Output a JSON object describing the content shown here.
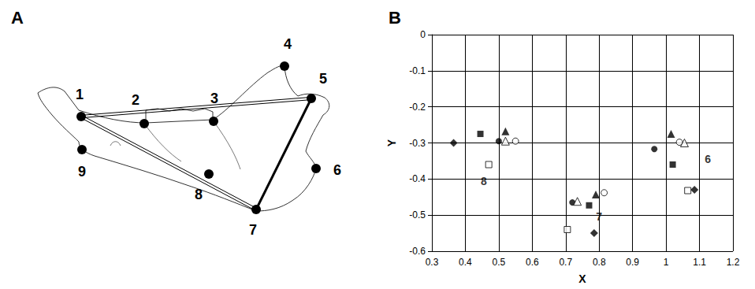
{
  "figure": {
    "panel_a": {
      "letter": "A",
      "landmarks": [
        "1",
        "2",
        "3",
        "4",
        "5",
        "6",
        "7",
        "8",
        "9"
      ]
    },
    "panel_b": {
      "letter": "B"
    }
  },
  "chart_data": {
    "type": "scatter",
    "x_label": "X",
    "y_label": "Y",
    "xlim": [
      0.3,
      1.2
    ],
    "xticks": [
      0.3,
      0.4,
      0.5,
      0.6,
      0.7,
      0.8,
      0.9,
      1,
      1.1,
      1.2
    ],
    "ylim": [
      -0.6,
      0
    ],
    "yticks": [
      -0.6,
      -0.5,
      -0.4,
      -0.3,
      -0.2,
      -0.1,
      0
    ],
    "grid": true,
    "series": [
      {
        "marker": "diamond",
        "color": "#000000",
        "x": [
          0.365,
          0.785,
          1.085
        ],
        "values": [
          -0.3,
          -0.55,
          -0.43
        ]
      },
      {
        "marker": "square",
        "color": "#000000",
        "x": [
          0.445,
          0.77,
          1.02
        ],
        "values": [
          -0.275,
          -0.473,
          -0.36
        ]
      },
      {
        "marker": "square-open",
        "color": "#000000",
        "x": [
          0.47,
          0.705,
          1.065
        ],
        "values": [
          -0.36,
          -0.54,
          -0.432
        ]
      },
      {
        "marker": "circle",
        "color": "#000000",
        "x": [
          0.5,
          0.72,
          0.965
        ],
        "values": [
          -0.295,
          -0.465,
          -0.317
        ]
      },
      {
        "marker": "circle-open",
        "color": "#000000",
        "x": [
          0.55,
          0.815,
          1.04
        ],
        "values": [
          -0.295,
          -0.438,
          -0.298
        ]
      },
      {
        "marker": "triangle",
        "color": "#000000",
        "x": [
          0.52,
          0.79,
          1.015
        ],
        "values": [
          -0.268,
          -0.443,
          -0.275
        ]
      },
      {
        "marker": "triangle-open",
        "color": "#000000",
        "x": [
          0.52,
          0.735,
          1.055
        ],
        "values": [
          -0.295,
          -0.462,
          -0.3
        ]
      }
    ],
    "annotations": [
      {
        "text": "8",
        "x": 0.455,
        "y": -0.405
      },
      {
        "text": "7",
        "x": 0.8,
        "y": -0.505
      },
      {
        "text": "6",
        "x": 1.125,
        "y": -0.345
      }
    ]
  }
}
